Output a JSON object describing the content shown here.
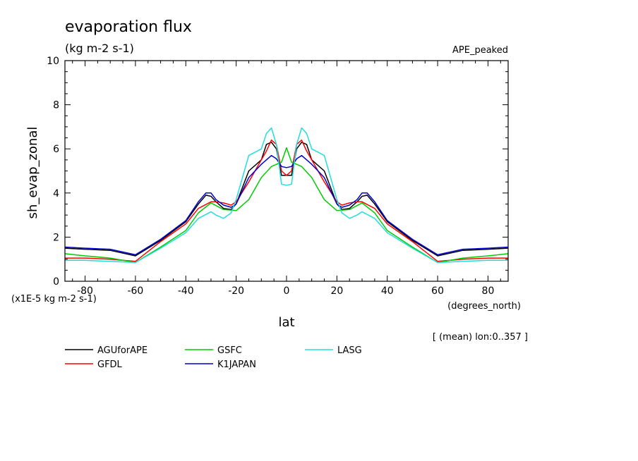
{
  "chart_data": {
    "type": "line",
    "title": "evaporation flux",
    "units": "(kg m-2 s-1)",
    "experiment": "APE_peaked",
    "xlabel": "lat",
    "x_units": "(degrees_north)",
    "ylabel": "sh_evap_zonal",
    "y_scale_note": "(x1E-5 kg m-2 s-1)",
    "footnote": "[ (mean) lon:0..357 ]",
    "xlim": [
      -88,
      88
    ],
    "ylim": [
      0,
      10
    ],
    "x_ticks": [
      -80,
      -60,
      -40,
      -20,
      0,
      20,
      40,
      60,
      80
    ],
    "y_ticks": [
      0,
      2,
      4,
      6,
      8,
      10
    ],
    "x_tick_labels": [
      "-80",
      "-60",
      "-40",
      "-20",
      "0",
      "20",
      "40",
      "60",
      "80"
    ],
    "y_tick_labels": [
      "0",
      "2",
      "4",
      "6",
      "8",
      "10"
    ],
    "grid": false,
    "legend_position": "bottom",
    "series": [
      {
        "name": "AGUforAPE",
        "color": "#000000",
        "x": [
          -88,
          -80,
          -70,
          -60,
          -50,
          -40,
          -35,
          -32,
          -30,
          -28,
          -25,
          -22,
          -20,
          -15,
          -10,
          -8,
          -6,
          -4,
          -2,
          0,
          2,
          4,
          6,
          8,
          10,
          15,
          20,
          22,
          25,
          28,
          30,
          32,
          35,
          40,
          50,
          60,
          70,
          80,
          88
        ],
        "values": [
          1.5,
          1.45,
          1.4,
          1.15,
          1.85,
          2.7,
          3.5,
          3.9,
          3.85,
          3.6,
          3.3,
          3.25,
          3.5,
          5.0,
          5.5,
          6.2,
          6.3,
          6.0,
          4.8,
          4.8,
          4.8,
          6.0,
          6.3,
          6.2,
          5.5,
          5.0,
          3.5,
          3.25,
          3.3,
          3.6,
          3.85,
          3.9,
          3.5,
          2.7,
          1.85,
          1.15,
          1.4,
          1.45,
          1.5
        ]
      },
      {
        "name": "GFDL",
        "color": "#ff0000",
        "x": [
          -88,
          -80,
          -70,
          -60,
          -50,
          -40,
          -35,
          -30,
          -28,
          -25,
          -22,
          -20,
          -15,
          -10,
          -8,
          -6,
          -4,
          -2,
          0,
          2,
          4,
          6,
          8,
          10,
          15,
          20,
          22,
          25,
          28,
          30,
          35,
          40,
          50,
          60,
          70,
          80,
          88
        ],
        "values": [
          1.05,
          1.05,
          1.0,
          0.9,
          1.8,
          2.6,
          3.3,
          3.6,
          3.6,
          3.55,
          3.45,
          3.6,
          4.5,
          5.5,
          5.9,
          6.4,
          6.2,
          5.0,
          4.8,
          5.0,
          6.2,
          6.4,
          5.9,
          5.5,
          4.5,
          3.6,
          3.45,
          3.55,
          3.6,
          3.6,
          3.3,
          2.6,
          1.8,
          0.9,
          1.0,
          1.05,
          1.05
        ]
      },
      {
        "name": "GSFC",
        "color": "#00cc00",
        "x": [
          -88,
          -80,
          -70,
          -60,
          -50,
          -40,
          -35,
          -30,
          -25,
          -20,
          -15,
          -10,
          -6,
          -4,
          -2,
          0,
          2,
          4,
          6,
          10,
          15,
          20,
          25,
          30,
          35,
          40,
          50,
          60,
          70,
          80,
          88
        ],
        "values": [
          1.25,
          1.15,
          1.05,
          0.85,
          1.55,
          2.3,
          3.1,
          3.55,
          3.25,
          3.2,
          3.7,
          4.7,
          5.2,
          5.3,
          5.4,
          6.05,
          5.4,
          5.3,
          5.2,
          4.7,
          3.7,
          3.2,
          3.25,
          3.55,
          3.1,
          2.3,
          1.55,
          0.85,
          1.05,
          1.15,
          1.25
        ]
      },
      {
        "name": "K1JAPAN",
        "color": "#0000cc",
        "x": [
          -88,
          -80,
          -70,
          -60,
          -50,
          -40,
          -35,
          -32,
          -30,
          -28,
          -25,
          -22,
          -20,
          -15,
          -10,
          -6,
          -4,
          -2,
          0,
          2,
          4,
          6,
          10,
          15,
          20,
          22,
          25,
          28,
          30,
          32,
          35,
          40,
          50,
          60,
          70,
          80,
          88
        ],
        "values": [
          1.55,
          1.5,
          1.45,
          1.2,
          1.9,
          2.75,
          3.6,
          4.0,
          4.0,
          3.7,
          3.45,
          3.35,
          3.5,
          4.7,
          5.3,
          5.7,
          5.55,
          5.2,
          5.15,
          5.2,
          5.55,
          5.7,
          5.3,
          4.7,
          3.5,
          3.35,
          3.45,
          3.7,
          4.0,
          4.0,
          3.6,
          2.75,
          1.9,
          1.2,
          1.45,
          1.5,
          1.55
        ]
      },
      {
        "name": "LASG",
        "color": "#22dddd",
        "x": [
          -88,
          -80,
          -70,
          -60,
          -50,
          -40,
          -35,
          -30,
          -28,
          -25,
          -22,
          -20,
          -15,
          -10,
          -8,
          -6,
          -4,
          -2,
          0,
          2,
          4,
          6,
          8,
          10,
          15,
          20,
          22,
          25,
          28,
          30,
          35,
          40,
          50,
          60,
          70,
          80,
          88
        ],
        "values": [
          0.95,
          0.95,
          0.9,
          0.85,
          1.5,
          2.2,
          2.85,
          3.15,
          3.0,
          2.85,
          3.1,
          3.7,
          5.7,
          6.0,
          6.7,
          6.95,
          6.2,
          4.4,
          4.35,
          4.4,
          6.2,
          6.95,
          6.7,
          6.0,
          5.7,
          3.7,
          3.1,
          2.85,
          3.0,
          3.15,
          2.85,
          2.2,
          1.5,
          0.85,
          0.9,
          0.95,
          0.95
        ]
      }
    ]
  }
}
